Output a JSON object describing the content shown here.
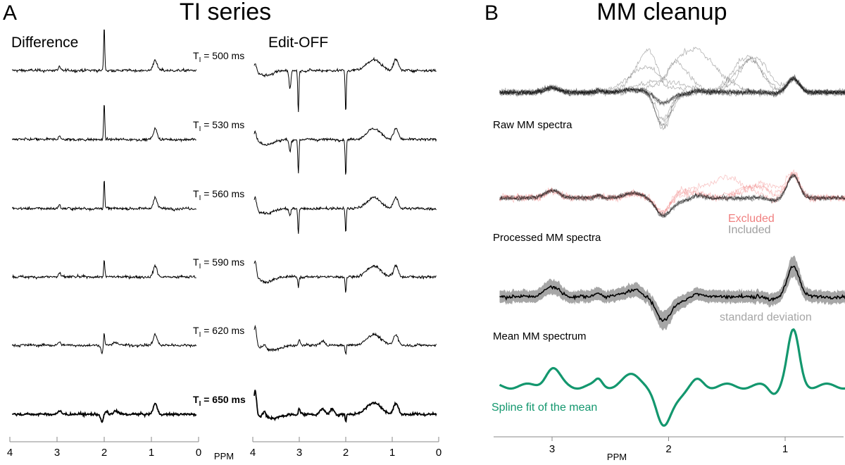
{
  "figure": {
    "panel_a": {
      "letter": "A",
      "title": "TI series",
      "difference_title": "Difference",
      "edit_off_title": "Edit-OFF"
    },
    "panel_b": {
      "letter": "B",
      "title": "MM cleanup"
    }
  },
  "chart_data": [
    {
      "id": "ti-series-difference",
      "type": "line",
      "title": "Difference",
      "xlabel": "PPM",
      "xlim": [
        4,
        0
      ],
      "xticks": [
        "4",
        "3",
        "2",
        "1",
        "0"
      ],
      "grid": false,
      "series": [
        {
          "name": "TI = 500 ms",
          "ti_ms": 500,
          "label": "T",
          "sub": "I",
          "value_text": " = 500 ms",
          "bold": false,
          "peaks": [
            [
              2.0,
              9.0,
              0.012
            ],
            [
              0.92,
              2.2,
              0.04
            ],
            [
              2.95,
              0.8,
              0.02
            ]
          ],
          "noise": 0.5
        },
        {
          "name": "TI = 530 ms",
          "ti_ms": 530,
          "label": "T",
          "sub": "I",
          "value_text": " = 530 ms",
          "bold": false,
          "peaks": [
            [
              2.0,
              7.5,
              0.012
            ],
            [
              0.92,
              2.2,
              0.04
            ],
            [
              2.95,
              0.9,
              0.02
            ]
          ],
          "noise": 0.5
        },
        {
          "name": "TI = 560 ms",
          "ti_ms": 560,
          "label": "T",
          "sub": "I",
          "value_text": " = 560 ms",
          "bold": false,
          "peaks": [
            [
              2.0,
              6.0,
              0.012
            ],
            [
              0.92,
              2.2,
              0.04
            ],
            [
              2.95,
              0.8,
              0.02
            ]
          ],
          "noise": 0.5
        },
        {
          "name": "TI = 590 ms",
          "ti_ms": 590,
          "label": "T",
          "sub": "I",
          "value_text": " = 590 ms",
          "bold": false,
          "peaks": [
            [
              2.0,
              3.5,
              0.012
            ],
            [
              0.92,
              2.2,
              0.04
            ],
            [
              2.95,
              0.8,
              0.02
            ]
          ],
          "noise": 0.5
        },
        {
          "name": "TI = 620 ms",
          "ti_ms": 620,
          "label": "T",
          "sub": "I",
          "value_text": " = 620 ms",
          "bold": false,
          "peaks": [
            [
              2.0,
              2.5,
              0.012
            ],
            [
              2.05,
              -1.5,
              0.02
            ],
            [
              0.92,
              2.2,
              0.04
            ],
            [
              2.95,
              0.6,
              0.03
            ],
            [
              1.75,
              0.6,
              0.05
            ]
          ],
          "noise": 0.5
        },
        {
          "name": "TI = 650 ms",
          "ti_ms": 650,
          "label": "T",
          "sub": "I",
          "value_text": " = 650 ms",
          "bold": true,
          "peaks": [
            [
              2.05,
              -1.6,
              0.025
            ],
            [
              1.95,
              0.6,
              0.02
            ],
            [
              0.92,
              2.2,
              0.04
            ],
            [
              2.95,
              0.6,
              0.04
            ],
            [
              1.75,
              0.6,
              0.05
            ]
          ],
          "noise": 0.45
        }
      ]
    },
    {
      "id": "ti-series-edit-off",
      "type": "line",
      "title": "Edit-OFF",
      "xlabel": "PPM",
      "xlim": [
        4,
        0
      ],
      "xticks": [
        "4",
        "3",
        "2",
        "1",
        "0"
      ],
      "grid": false,
      "series": [
        {
          "name": "TI = 500 ms",
          "ti_ms": 500,
          "peaks": [
            [
              3.95,
              1.5,
              0.03
            ],
            [
              3.2,
              -3.5,
              0.02
            ],
            [
              3.02,
              -8.5,
              0.012
            ],
            [
              2.0,
              -8.5,
              0.012
            ],
            [
              1.4,
              2.2,
              0.15
            ],
            [
              0.92,
              2.2,
              0.05
            ],
            [
              3.7,
              -1.0,
              0.15
            ]
          ]
        },
        {
          "name": "TI = 530 ms",
          "ti_ms": 530,
          "peaks": [
            [
              3.95,
              1.8,
              0.03
            ],
            [
              3.2,
              -2.5,
              0.02
            ],
            [
              3.02,
              -7.0,
              0.012
            ],
            [
              2.0,
              -7.5,
              0.012
            ],
            [
              1.4,
              2.2,
              0.15
            ],
            [
              0.92,
              2.2,
              0.05
            ],
            [
              3.7,
              -1.0,
              0.15
            ]
          ]
        },
        {
          "name": "TI = 560 ms",
          "ti_ms": 560,
          "peaks": [
            [
              3.95,
              2.5,
              0.03
            ],
            [
              3.2,
              -1.5,
              0.02
            ],
            [
              3.02,
              -5.0,
              0.012
            ],
            [
              2.0,
              -5.0,
              0.012
            ],
            [
              1.4,
              2.2,
              0.15
            ],
            [
              0.92,
              2.2,
              0.05
            ],
            [
              3.7,
              -1.0,
              0.15
            ]
          ]
        },
        {
          "name": "TI = 590 ms",
          "ti_ms": 590,
          "peaks": [
            [
              3.95,
              3.5,
              0.03
            ],
            [
              3.02,
              -2.0,
              0.012
            ],
            [
              2.0,
              -3.0,
              0.012
            ],
            [
              1.4,
              2.2,
              0.15
            ],
            [
              0.92,
              2.2,
              0.05
            ],
            [
              3.7,
              -1.0,
              0.15
            ]
          ]
        },
        {
          "name": "TI = 620 ms",
          "ti_ms": 620,
          "peaks": [
            [
              3.95,
              4.0,
              0.03
            ],
            [
              3.75,
              1.0,
              0.03
            ],
            [
              3.0,
              1.0,
              0.02
            ],
            [
              2.5,
              0.8,
              0.05
            ],
            [
              2.0,
              -2.0,
              0.012
            ],
            [
              1.4,
              2.2,
              0.15
            ],
            [
              0.92,
              2.2,
              0.05
            ],
            [
              3.6,
              -1.0,
              0.2
            ]
          ]
        },
        {
          "name": "TI = 650 ms",
          "ti_ms": 650,
          "peaks": [
            [
              3.95,
              5.0,
              0.03
            ],
            [
              3.75,
              1.2,
              0.03
            ],
            [
              3.0,
              1.2,
              0.02
            ],
            [
              2.5,
              1.0,
              0.05
            ],
            [
              2.3,
              1.0,
              0.04
            ],
            [
              2.0,
              -1.5,
              0.012
            ],
            [
              1.4,
              2.4,
              0.15
            ],
            [
              0.92,
              2.2,
              0.05
            ],
            [
              3.6,
              -0.8,
              0.2
            ]
          ]
        }
      ]
    },
    {
      "id": "mm-cleanup",
      "type": "line",
      "xlabel": "PPM",
      "xlim": [
        3.5,
        0.5
      ],
      "xticks": [
        "3",
        "2",
        "1"
      ],
      "grid": false,
      "rows": [
        {
          "name": "Raw MM spectra",
          "label": "Raw MM spectra",
          "color": "#808080",
          "n_traces": 14
        },
        {
          "name": "Processed MM spectra",
          "label": "Processed MM spectra",
          "legend": [
            {
              "label": "Excluded",
              "color": "#f08080"
            },
            {
              "label": "Included",
              "color": "#a0a0a0"
            }
          ]
        },
        {
          "name": "Mean MM spectrum",
          "label": "Mean MM spectrum",
          "band_label": "standard deviation",
          "band_color": "#a6a6a6",
          "line_color": "#000000"
        },
        {
          "name": "Spline fit of the mean",
          "label": "Spline fit of the mean",
          "color": "#13976e"
        }
      ],
      "mean_peaks": [
        [
          3.0,
          1.8,
          0.06
        ],
        [
          2.6,
          0.6,
          0.03
        ],
        [
          2.3,
          1.1,
          0.08
        ],
        [
          2.05,
          -3.6,
          0.06
        ],
        [
          1.75,
          0.7,
          0.05
        ],
        [
          1.1,
          -0.6,
          0.04
        ],
        [
          0.93,
          5.5,
          0.05
        ],
        [
          1.95,
          -1.0,
          0.1
        ]
      ]
    }
  ]
}
